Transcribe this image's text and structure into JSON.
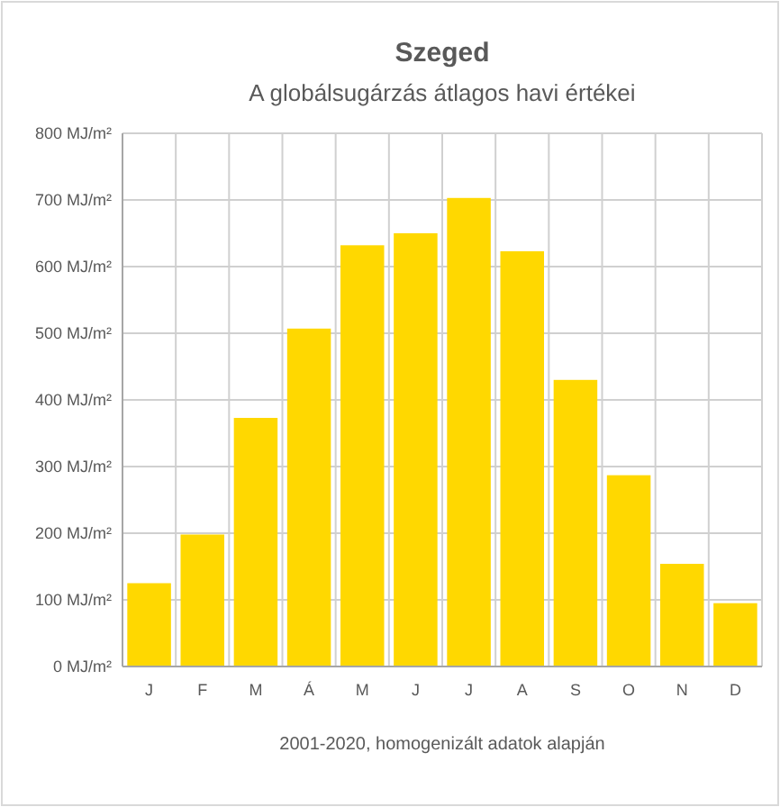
{
  "chart_data": {
    "type": "bar",
    "title": "Szeged",
    "subtitle": "A globálsugárzás átlagos havi értékei",
    "categories": [
      "J",
      "F",
      "M",
      "Á",
      "M",
      "J",
      "J",
      "A",
      "S",
      "O",
      "N",
      "D"
    ],
    "values": [
      125,
      198,
      373,
      507,
      632,
      650,
      703,
      623,
      430,
      287,
      154,
      95
    ],
    "color": "#ffd800",
    "ylim": [
      0,
      800
    ],
    "yticks": [
      {
        "value": 0,
        "label": "0 MJ/m²"
      },
      {
        "value": 100,
        "label": "100 MJ/m²"
      },
      {
        "value": 200,
        "label": "200 MJ/m²"
      },
      {
        "value": 300,
        "label": "300 MJ/m²"
      },
      {
        "value": 400,
        "label": "400 MJ/m²"
      },
      {
        "value": 500,
        "label": "500 MJ/m²"
      },
      {
        "value": 600,
        "label": "600 MJ/m²"
      },
      {
        "value": 700,
        "label": "700 MJ/m²"
      },
      {
        "value": 800,
        "label": "800 MJ/m²"
      }
    ],
    "grid": true,
    "annotations": [
      "2001-2020,  homogenizált adatok alapján"
    ]
  }
}
